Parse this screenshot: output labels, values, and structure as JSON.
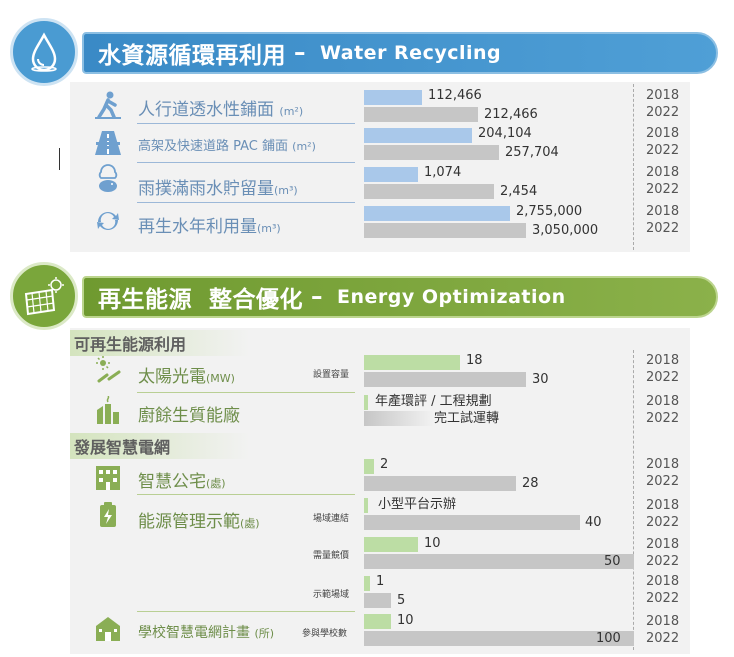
{
  "colors": {
    "blue_header": "#3b8ac4",
    "green_header": "#7ea43d",
    "bar_blue": "#a9c8ea",
    "bar_green": "#bcdda4",
    "bar_gray": "#c6c6c6"
  },
  "water": {
    "title_zh": "水資源循環再利用",
    "title_en": "Water Recycling",
    "dash": "–",
    "rows": [
      {
        "label": "人行道透水性鋪面",
        "unit": "(m²)",
        "icon": "walking-person-icon",
        "v2018": "112,466",
        "v2022": "212,466"
      },
      {
        "label": "高架及快速道路 PAC 鋪面",
        "unit": "(m²)",
        "icon": "highway-road-icon",
        "v2018": "204,104",
        "v2022": "257,704"
      },
      {
        "label": "雨撲滿雨水貯留量",
        "unit": "(m³)",
        "icon": "rain-piggybank-icon",
        "v2018": "1,074",
        "v2022": "2,454"
      },
      {
        "label": "再生水年利用量",
        "unit": "(m³)",
        "icon": "recycle-water-icon",
        "v2018": "2,755,000",
        "v2022": "3,050,000"
      }
    ]
  },
  "energy": {
    "title_zh": "再生能源  整合優化",
    "title_en": "Energy Optimization",
    "dash": "–",
    "cat1": "可再生能源利用",
    "cat2": "發展智慧電網",
    "solar": {
      "label": "太陽光電",
      "unit": "(MW)",
      "sub": "設置容量",
      "icon": "solar-power-icon",
      "v2018": "18",
      "v2022": "30"
    },
    "kitchen": {
      "label": "廚餘生質能廠",
      "icon": "biomass-plant-icon",
      "v2018": "年產環評 / 工程規劃",
      "v2022": "完工試運轉"
    },
    "home": {
      "label": "智慧公宅",
      "unit": "(處)",
      "icon": "smart-building-icon",
      "v2018": "2",
      "v2022": "28"
    },
    "ems": {
      "label": "能源管理示範",
      "unit": "(處)",
      "icon": "energy-management-icon",
      "rows": [
        {
          "sub": "場域連結",
          "v2018": "小型平台示辦",
          "v2022": "40"
        },
        {
          "sub": "需量競價",
          "v2018": "10",
          "v2022": "50"
        },
        {
          "sub": "示範場域",
          "v2018": "1",
          "v2022": "5"
        }
      ]
    },
    "school": {
      "label": "學校智慧電網計畫",
      "unit": "(所)",
      "sub": "參與學校數",
      "icon": "school-icon",
      "v2018": "10",
      "v2022": "100"
    }
  },
  "years": {
    "a": "2018",
    "b": "2022"
  },
  "chart_data": [
    {
      "type": "bar",
      "title": "水資源循環再利用 – Water Recycling",
      "categories": [
        "人行道透水性鋪面 (m²)",
        "高架及快速道路 PAC 鋪面 (m²)",
        "雨撲滿雨水貯留量(m³)",
        "再生水年利用量(m³)"
      ],
      "series": [
        {
          "name": "2018",
          "values": [
            112466,
            204104,
            1074,
            2755000
          ]
        },
        {
          "name": "2022",
          "values": [
            212466,
            257704,
            2454,
            3050000
          ]
        }
      ]
    },
    {
      "type": "bar",
      "title": "再生能源 整合優化 – Energy Optimization",
      "categories": [
        "太陽光電(MW) 設置容量",
        "智慧公宅(處)",
        "能源管理示範(處) 場域連結",
        "能源管理示範(處) 需量競價",
        "能源管理示範(處) 示範場域",
        "學校智慧電網計畫 (所) 參與學校數"
      ],
      "series": [
        {
          "name": "2018",
          "values": [
            18,
            2,
            null,
            10,
            1,
            10
          ]
        },
        {
          "name": "2022",
          "values": [
            30,
            28,
            40,
            50,
            5,
            100
          ]
        }
      ]
    }
  ]
}
